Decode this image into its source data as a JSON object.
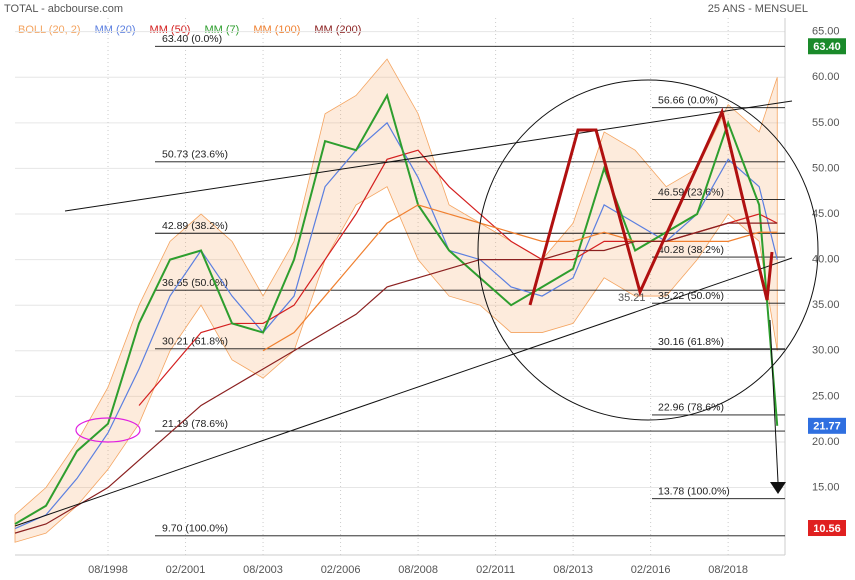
{
  "header": {
    "title": "TOTAL - abcbourse.com",
    "period": "25 ANS - MENSUEL"
  },
  "chart_data": {
    "type": "line",
    "x": [
      "08/1995",
      "08/1996",
      "08/1997",
      "08/1998",
      "08/1999",
      "08/2000",
      "08/2001",
      "08/2002",
      "08/2003",
      "08/2004",
      "08/2005",
      "08/2006",
      "08/2007",
      "08/2008",
      "08/2009",
      "08/2010",
      "08/2011",
      "08/2012",
      "08/2013",
      "08/2014",
      "08/2015",
      "08/2016",
      "08/2017",
      "08/2018",
      "08/2019",
      "03/2020"
    ],
    "xlim": [
      "08/1995",
      "06/2020"
    ],
    "xticks": [
      "08/1998",
      "02/2001",
      "08/2003",
      "02/2006",
      "08/2008",
      "02/2011",
      "08/2013",
      "02/2016",
      "08/2018"
    ],
    "ylim": [
      7.6,
      66.5
    ],
    "yticks": [
      {
        "value": 15,
        "label": "15.00"
      },
      {
        "value": 20,
        "label": "20.00"
      },
      {
        "value": 25,
        "label": "25.00"
      },
      {
        "value": 30,
        "label": "30.00"
      },
      {
        "value": 35,
        "label": "35.00"
      },
      {
        "value": 40,
        "label": "40.00"
      },
      {
        "value": 45,
        "label": "45.00"
      },
      {
        "value": 50,
        "label": "50.00"
      },
      {
        "value": 55,
        "label": "55.00"
      },
      {
        "value": 60,
        "label": "60.00"
      },
      {
        "value": 65,
        "label": "65.00"
      }
    ],
    "grid": true,
    "band": {
      "name": "BOLL (20, 2)",
      "color": "#f4a460",
      "upper": [
        12,
        15,
        20,
        26,
        35,
        42,
        45,
        42,
        36,
        42,
        56,
        58,
        62,
        56,
        46,
        44,
        42,
        40,
        44,
        54,
        52,
        48,
        50,
        57,
        54,
        60
      ],
      "lower": [
        9,
        10,
        13,
        17,
        22,
        30,
        35,
        29,
        27,
        30,
        40,
        46,
        48,
        40,
        36,
        35,
        32,
        32,
        33,
        38,
        36,
        36,
        40,
        45,
        42,
        30
      ]
    },
    "series": [
      {
        "name": "MM (20)",
        "color": "#5b7fe0",
        "values": [
          10.5,
          12,
          16,
          21,
          28,
          36,
          41,
          36,
          32,
          36,
          48,
          52,
          55,
          49,
          41,
          40,
          37,
          36,
          38,
          46,
          44,
          42,
          45,
          51,
          48,
          40
        ]
      },
      {
        "name": "MM (50)",
        "color": "#d42020",
        "values": [
          null,
          null,
          null,
          null,
          24,
          28,
          32,
          33,
          33,
          35,
          40,
          45,
          51,
          52,
          48,
          45,
          42,
          40,
          40,
          42,
          42,
          42,
          43,
          44,
          45,
          44
        ]
      },
      {
        "name": "MM (7)",
        "color": "#2e9e2e",
        "values": [
          11,
          13,
          19,
          22,
          33,
          40,
          41,
          33,
          32,
          40,
          53,
          52,
          58,
          46,
          41,
          38,
          35,
          37,
          39,
          50,
          41,
          43,
          45,
          55,
          46,
          21.77
        ]
      },
      {
        "name": "MM (100)",
        "color": "#f08030",
        "values": [
          null,
          null,
          null,
          null,
          null,
          null,
          null,
          null,
          30,
          32,
          36,
          40,
          44,
          46,
          45,
          44,
          43,
          42,
          42,
          43,
          42,
          42,
          42,
          42,
          43,
          43
        ]
      },
      {
        "name": "MM (200)",
        "color": "#8b2020",
        "values": [
          10,
          11,
          13,
          15,
          18,
          21,
          24,
          26,
          28,
          30,
          32,
          34,
          37,
          38,
          39,
          40,
          40,
          40,
          41,
          41,
          42,
          42,
          43,
          44,
          44,
          44
        ]
      }
    ],
    "fib_left": [
      {
        "value": 63.4,
        "label": "63.40  (0.0%)"
      },
      {
        "value": 50.73,
        "label": "50.73  (23.6%)"
      },
      {
        "value": 42.89,
        "label": "42.89  (38.2%)"
      },
      {
        "value": 36.65,
        "label": "36.65  (50.0%)"
      },
      {
        "value": 30.21,
        "label": "30.21  (61.8%)"
      },
      {
        "value": 21.19,
        "label": "21.19  (78.6%)"
      },
      {
        "value": 9.7,
        "label": "9.70  (100.0%)"
      }
    ],
    "fib_right": [
      {
        "value": 56.66,
        "label": "56.66  (0.0%)"
      },
      {
        "value": 46.59,
        "label": "46.59  (23.6%)"
      },
      {
        "value": 40.28,
        "label": "40.28  (38.2%)"
      },
      {
        "value": 35.22,
        "label": "35.22  (50.0%)"
      },
      {
        "value": 30.16,
        "label": "30.16  (61.8%)"
      },
      {
        "value": 22.96,
        "label": "22.96  (78.6%)"
      },
      {
        "value": 13.78,
        "label": "13.78  (100.0%)"
      }
    ],
    "annotation": {
      "value": 35.21,
      "label": "35.21",
      "color": "#2e9e2e"
    },
    "price_tags": [
      {
        "value": 63.4,
        "label": "63.40",
        "color": "#1a8a2a"
      },
      {
        "value": 21.77,
        "label": "21.77",
        "color": "#2f6fe0"
      },
      {
        "value": 10.56,
        "label": "10.56",
        "color": "#e02020"
      }
    ]
  }
}
